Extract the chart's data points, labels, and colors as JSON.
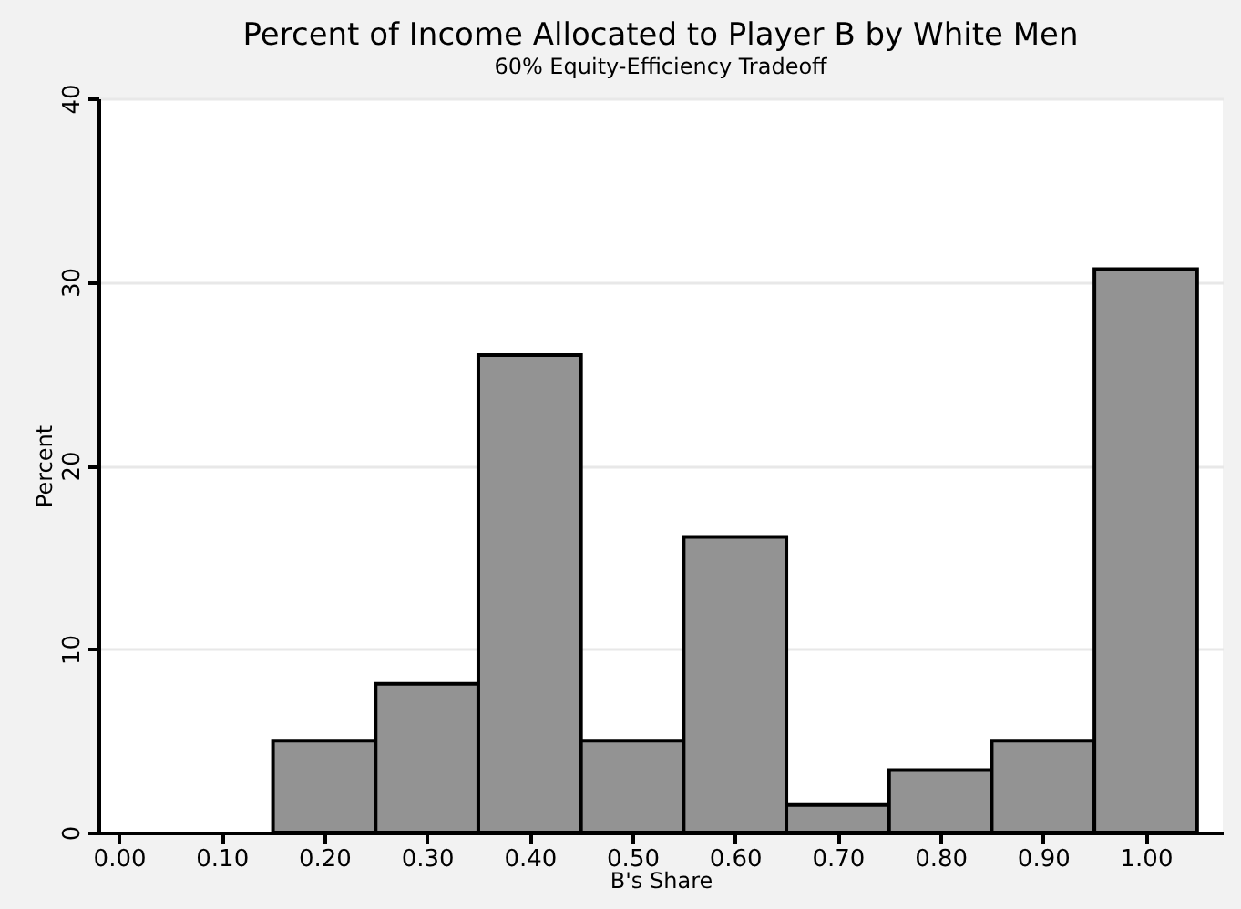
{
  "chart_data": {
    "type": "histogram",
    "title": "Percent of Income Allocated to Player B by White Men",
    "subtitle": "60% Equity-Efficiency Tradeoff",
    "xlabel": "B's Share",
    "ylabel": "Percent",
    "bins": [
      0.15,
      0.25,
      0.35,
      0.45,
      0.55,
      0.65,
      0.75,
      0.85,
      0.95,
      1.05
    ],
    "values": [
      5.0,
      8.1,
      26.0,
      5.0,
      16.1,
      1.5,
      3.4,
      5.0,
      30.7
    ],
    "color": "#939393",
    "xlim": [
      -0.02,
      1.075
    ],
    "ylim": [
      0,
      40
    ],
    "xticks": [
      {
        "value": 0,
        "label": "0.00"
      },
      {
        "value": 0.1,
        "label": "0.10"
      },
      {
        "value": 0.2,
        "label": "0.20"
      },
      {
        "value": 0.3,
        "label": "0.30"
      },
      {
        "value": 0.4,
        "label": "0.40"
      },
      {
        "value": 0.5,
        "label": "0.50"
      },
      {
        "value": 0.6,
        "label": "0.60"
      },
      {
        "value": 0.7,
        "label": "0.70"
      },
      {
        "value": 0.8,
        "label": "0.80"
      },
      {
        "value": 0.9,
        "label": "0.90"
      },
      {
        "value": 1,
        "label": "1.00"
      }
    ],
    "yticks": [
      0,
      10,
      20,
      30,
      40
    ],
    "grid": "y"
  }
}
